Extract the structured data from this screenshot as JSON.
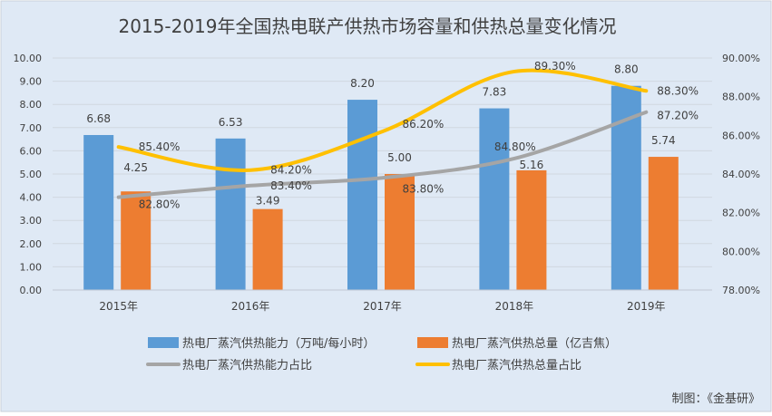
{
  "chart_data": {
    "type": "bar",
    "title": "2015-2019年全国热电联产供热市场容量和供热总量变化情况",
    "categories": [
      "2015年",
      "2016年",
      "2017年",
      "2018年",
      "2019年"
    ],
    "y_left": {
      "range": [
        0,
        10
      ],
      "ticks": [
        "0.00",
        "1.00",
        "2.00",
        "3.00",
        "4.00",
        "5.00",
        "6.00",
        "7.00",
        "8.00",
        "9.00",
        "10.00"
      ]
    },
    "y_right": {
      "range": [
        78,
        90
      ],
      "ticks": [
        "78.00%",
        "80.00%",
        "82.00%",
        "84.00%",
        "86.00%",
        "88.00%",
        "90.00%"
      ]
    },
    "grid": true,
    "legend_position": "bottom",
    "series": [
      {
        "name": "热电厂蒸汽供热能力（万吨/每小时）",
        "type": "bar",
        "axis": "left",
        "color": "#5b9bd5",
        "values": [
          6.68,
          6.53,
          8.2,
          7.83,
          8.8
        ],
        "labels": [
          "6.68",
          "6.53",
          "8.20",
          "7.83",
          "8.80"
        ]
      },
      {
        "name": "热电厂蒸汽供热总量（亿吉焦）",
        "type": "bar",
        "axis": "left",
        "color": "#ed7d31",
        "values": [
          4.25,
          3.49,
          5.0,
          5.16,
          5.74
        ],
        "labels": [
          "4.25",
          "3.49",
          "5.00",
          "5.16",
          "5.74"
        ]
      },
      {
        "name": "热电厂蒸汽供热能力占比",
        "type": "line",
        "axis": "right",
        "color": "#a5a5a5",
        "values": [
          82.8,
          83.4,
          83.8,
          84.8,
          87.2
        ],
        "labels": [
          "82.80%",
          "83.40%",
          "83.80%",
          "84.80%",
          "87.20%"
        ]
      },
      {
        "name": "热电厂蒸汽供热总量占比",
        "type": "line",
        "axis": "right",
        "color": "#ffc000",
        "values": [
          85.4,
          84.2,
          86.2,
          89.3,
          88.3
        ],
        "labels": [
          "85.40%",
          "84.20%",
          "86.20%",
          "89.30%",
          "88.30%"
        ]
      }
    ]
  },
  "footer": {
    "credit": "制图：《金基研》"
  },
  "colors": {
    "background": "#dfe9f5",
    "grid": "#d0d7e0",
    "text": "#404040"
  }
}
